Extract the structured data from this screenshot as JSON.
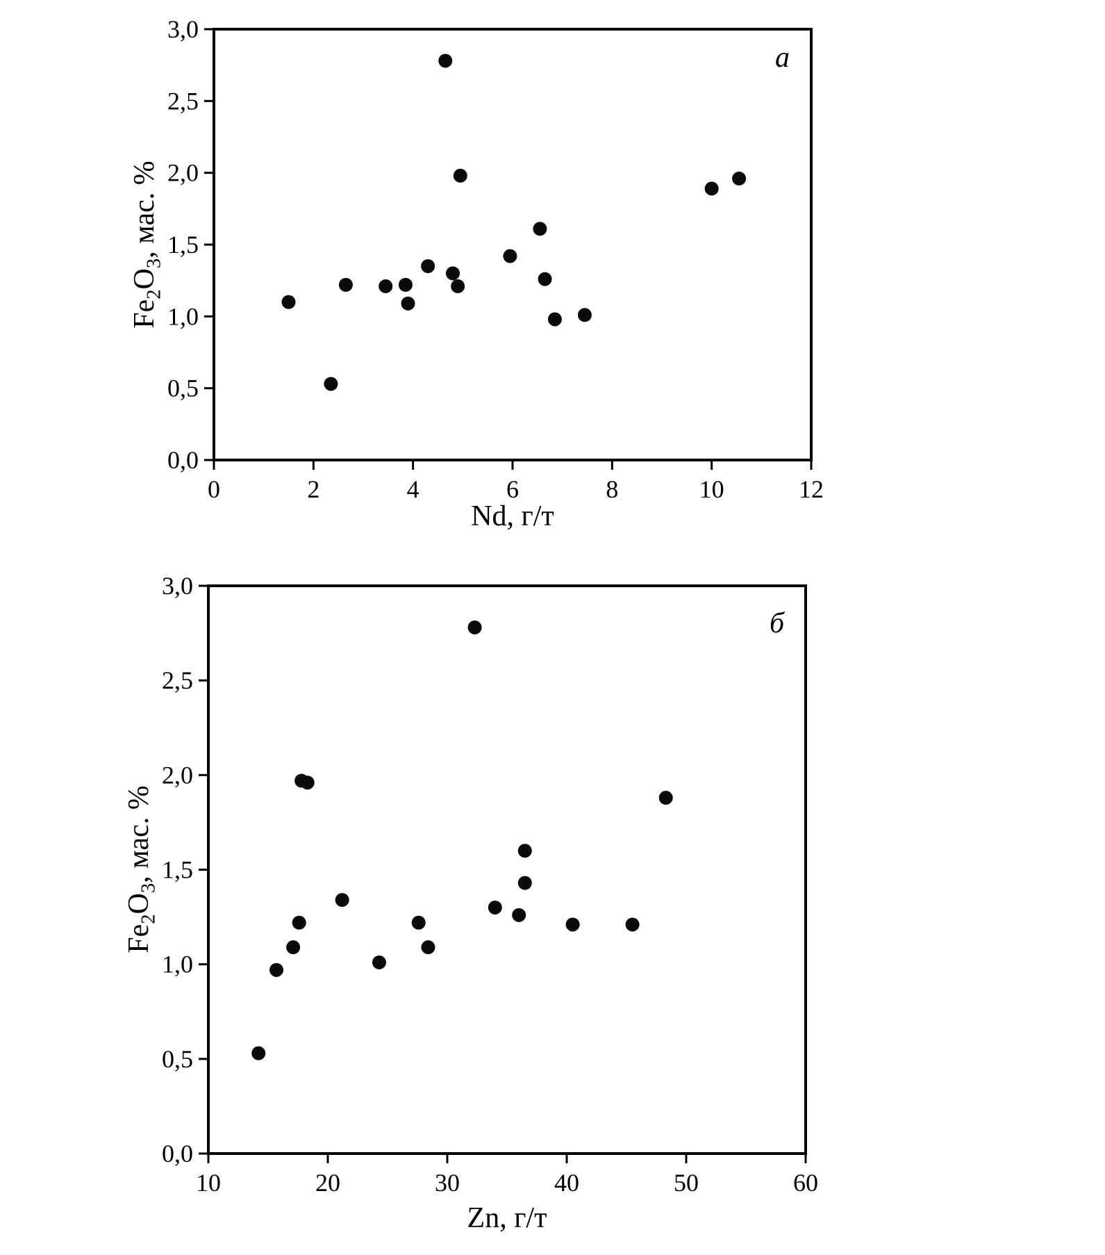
{
  "style": {
    "point_color": "#0a0a0a",
    "axis_color": "#000000",
    "background": "#ffffff",
    "point_radius": 10
  },
  "ylabel": {
    "fe": "Fe",
    "sub2": "2",
    "o": "O",
    "sub3": "3",
    "rest": ", мас. %"
  },
  "chart_data": [
    {
      "type": "scatter",
      "panel_label": "a",
      "xlabel": "Nd, г/т",
      "ylabel": "Fe2O3, мас. %",
      "xlim": [
        0,
        12
      ],
      "ylim": [
        0,
        3
      ],
      "grid": false,
      "xticks": [
        0,
        2,
        4,
        6,
        8,
        10,
        12
      ],
      "xtick_labels": [
        "0",
        "2",
        "4",
        "6",
        "8",
        "10",
        "12"
      ],
      "yticks": [
        0,
        0.5,
        1,
        1.5,
        2,
        2.5,
        3
      ],
      "ytick_labels": [
        "0,0",
        "0,5",
        "1,0",
        "1,5",
        "2,0",
        "2,5",
        "3,0"
      ],
      "points": [
        [
          1.5,
          1.1
        ],
        [
          2.35,
          0.53
        ],
        [
          2.65,
          1.22
        ],
        [
          3.45,
          1.21
        ],
        [
          3.85,
          1.22
        ],
        [
          3.9,
          1.09
        ],
        [
          4.3,
          1.35
        ],
        [
          4.65,
          2.78
        ],
        [
          4.8,
          1.3
        ],
        [
          4.9,
          1.21
        ],
        [
          4.95,
          1.98
        ],
        [
          5.95,
          1.42
        ],
        [
          6.55,
          1.61
        ],
        [
          6.65,
          1.26
        ],
        [
          6.85,
          0.98
        ],
        [
          7.45,
          1.01
        ],
        [
          10.0,
          1.89
        ],
        [
          10.55,
          1.96
        ]
      ]
    },
    {
      "type": "scatter",
      "panel_label": "б",
      "xlabel": "Zn, г/т",
      "ylabel": "Fe2O3, мас. %",
      "xlim": [
        10,
        60
      ],
      "ylim": [
        0,
        3
      ],
      "grid": false,
      "xticks": [
        10,
        20,
        30,
        40,
        50,
        60
      ],
      "xtick_labels": [
        "10",
        "20",
        "30",
        "40",
        "50",
        "60"
      ],
      "yticks": [
        0,
        0.5,
        1,
        1.5,
        2,
        2.5,
        3
      ],
      "ytick_labels": [
        "0,0",
        "0,5",
        "1,0",
        "1,5",
        "2,0",
        "2,5",
        "3,0"
      ],
      "points": [
        [
          14.2,
          0.53
        ],
        [
          15.7,
          0.97
        ],
        [
          17.1,
          1.09
        ],
        [
          17.6,
          1.22
        ],
        [
          17.8,
          1.97
        ],
        [
          18.3,
          1.96
        ],
        [
          21.2,
          1.34
        ],
        [
          24.3,
          1.01
        ],
        [
          27.6,
          1.22
        ],
        [
          28.4,
          1.09
        ],
        [
          32.3,
          2.78
        ],
        [
          34.0,
          1.3
        ],
        [
          36.0,
          1.26
        ],
        [
          36.5,
          1.6
        ],
        [
          36.5,
          1.43
        ],
        [
          40.5,
          1.21
        ],
        [
          45.5,
          1.21
        ],
        [
          48.3,
          1.88
        ]
      ]
    }
  ]
}
